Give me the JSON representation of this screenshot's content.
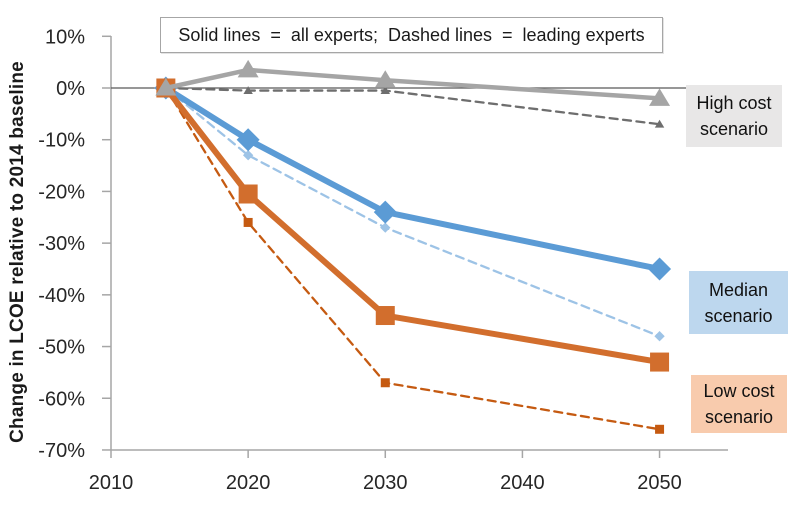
{
  "chart_data": {
    "type": "line",
    "title": "",
    "xlabel": "",
    "ylabel": "Change in LCOE relative to 2014 baseline",
    "legend_note": "Solid lines  =  all experts;  Dashed lines  =  leading experts",
    "x_ticks": {
      "values": [
        2010,
        2020,
        2030,
        2040,
        2050
      ],
      "labels": [
        "2010",
        "2020",
        "2030",
        "2040",
        "2050"
      ]
    },
    "y_ticks": {
      "values": [
        10,
        0,
        -10,
        -20,
        -30,
        -40,
        -50,
        -60,
        -70
      ],
      "labels": [
        "10%",
        "0%",
        "-10%",
        "-20%",
        "-30%",
        "-40%",
        "-50%",
        "-60%",
        "-70%"
      ]
    },
    "xlim": [
      2010,
      2055
    ],
    "ylim": [
      -70,
      10
    ],
    "grid": "zero-line-only",
    "legend_position": "top-annotation-box",
    "x": [
      2014,
      2020,
      2030,
      2050
    ],
    "series": [
      {
        "name": "Median scenario - leading experts",
        "scenario": "Median",
        "experts": "leading",
        "style": "dashed",
        "marker": "diamond",
        "color": "#9dc3e6",
        "width": 2.3,
        "values": [
          0,
          -13,
          -27,
          -48
        ]
      },
      {
        "name": "Low cost scenario - leading experts",
        "scenario": "Low cost",
        "experts": "leading",
        "style": "dashed",
        "marker": "square",
        "color": "#c55a11",
        "width": 2.3,
        "values": [
          0,
          -26,
          -57,
          -66
        ]
      },
      {
        "name": "High cost scenario - leading experts",
        "scenario": "High cost",
        "experts": "leading",
        "style": "dashed",
        "marker": "triangle",
        "color": "#6e6e6e",
        "width": 2.3,
        "values": [
          0,
          -0.5,
          -0.5,
          -7
        ]
      },
      {
        "name": "Median scenario - all experts",
        "scenario": "Median",
        "experts": "all",
        "style": "solid",
        "marker": "diamond",
        "color": "#5b9bd5",
        "width": 6,
        "values": [
          0,
          -10,
          -24,
          -35
        ]
      },
      {
        "name": "Low cost scenario - all experts",
        "scenario": "Low cost",
        "experts": "all",
        "style": "solid",
        "marker": "square",
        "color": "#d26e2d",
        "width": 6,
        "values": [
          0,
          -20.5,
          -44,
          -53
        ]
      },
      {
        "name": "High cost scenario - all experts",
        "scenario": "High cost",
        "experts": "all",
        "style": "solid",
        "marker": "triangle",
        "color": "#a5a5a5",
        "width": 4.5,
        "values": [
          0,
          3.5,
          1.5,
          -2
        ]
      }
    ],
    "annotations": [
      {
        "id": "high-cost",
        "lines": [
          "High cost",
          "scenario"
        ],
        "bg": "#e8e7e7"
      },
      {
        "id": "median",
        "lines": [
          "Median",
          "scenario"
        ],
        "bg": "#bdd7ee"
      },
      {
        "id": "low-cost",
        "lines": [
          "Low cost",
          "scenario"
        ],
        "bg": "#f8cbad"
      }
    ],
    "colors": {
      "zero_line": "#595959",
      "axis": "#a6a6a6",
      "tick_text": "#262626"
    }
  }
}
